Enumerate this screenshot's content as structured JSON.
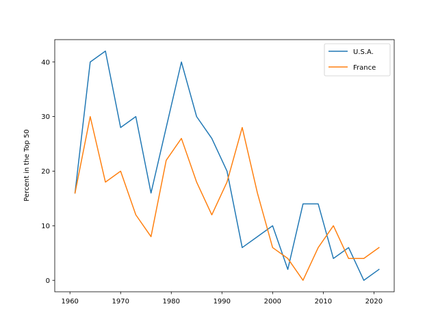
{
  "chart_data": {
    "type": "line",
    "title": "",
    "xlabel": "",
    "ylabel": "Percent in the Top 50",
    "xlim": [
      1957.0,
      2024.0
    ],
    "ylim": [
      -2.1,
      44.1
    ],
    "xticks": [
      1960,
      1970,
      1980,
      1990,
      2000,
      2010,
      2020
    ],
    "yticks": [
      0,
      10,
      20,
      30,
      40
    ],
    "grid": false,
    "legend": "top-right",
    "x": [
      1961,
      1964,
      1967,
      1970,
      1973,
      1976,
      1979,
      1982,
      1985,
      1988,
      1991,
      1994,
      1997,
      2000,
      2003,
      2006,
      2009,
      2012,
      2015,
      2018,
      2021
    ],
    "series": [
      {
        "name": "U.S.A.",
        "color": "#1f77b4",
        "values": [
          16,
          40,
          42,
          28,
          30,
          16,
          28,
          40,
          30,
          26,
          20,
          6,
          8,
          10,
          2,
          14,
          14,
          4,
          6,
          0,
          2
        ]
      },
      {
        "name": "France",
        "color": "#ff7f0e",
        "values": [
          16,
          30,
          18,
          20,
          12,
          8,
          22,
          26,
          18,
          12,
          18,
          28,
          16,
          6,
          4,
          0,
          6,
          10,
          4,
          4,
          6
        ]
      }
    ]
  }
}
